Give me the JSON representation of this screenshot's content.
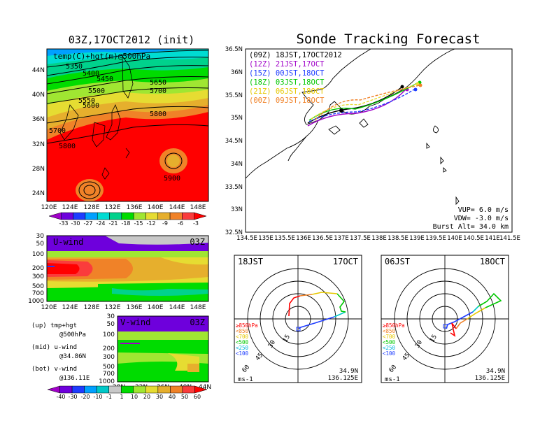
{
  "titles": {
    "left": "03Z,17OCT2012 (init)",
    "main": "Sonde Tracking Forecast"
  },
  "colors": {
    "temp_scale": [
      "#a000c8",
      "#6e00dc",
      "#1e3cff",
      "#00a0ff",
      "#00dcd2",
      "#00d28c",
      "#00dc00",
      "#a0e632",
      "#e6dc32",
      "#e6af2d",
      "#f08228",
      "#fa3c3c",
      "#ff0000"
    ],
    "wind_scale": [
      "#a000c8",
      "#6e00dc",
      "#1e3cff",
      "#00a0ff",
      "#00c8c8",
      "#c8c8c8",
      "#00dc00",
      "#a0e632",
      "#e6dc32",
      "#e6af2d",
      "#f08228",
      "#fa3c3c",
      "#ff0000"
    ],
    "track_09z": "#000000",
    "track_12z": "#a000c8",
    "track_15z": "#1e3cff",
    "track_18z": "#00c800",
    "track_21z": "#e6dc32",
    "track_00z": "#f08228"
  },
  "map500": {
    "label": "temp(C)+hgt(m)@500hPa",
    "height_labels": [
      "5350",
      "5400",
      "5450",
      "5500",
      "5550",
      "5600",
      "5650",
      "5700",
      "5700",
      "5800",
      "5800",
      "5900"
    ],
    "lat_ticks": [
      "44N",
      "40N",
      "36N",
      "32N",
      "28N",
      "24N"
    ],
    "lon_ticks": [
      "120E",
      "124E",
      "128E",
      "132E",
      "136E",
      "140E",
      "144E",
      "148E"
    ],
    "colorbar": [
      "-33",
      "-30",
      "-27",
      "-24",
      "-21",
      "-18",
      "-15",
      "-12",
      "-9",
      "-6",
      "-3"
    ]
  },
  "uwind": {
    "label": "U-wind",
    "time": "03Z",
    "p_ticks": [
      "30",
      "50",
      "100",
      "200",
      "300",
      "500",
      "700",
      "1000"
    ],
    "lon_ticks": [
      "120E",
      "124E",
      "128E",
      "132E",
      "136E",
      "140E",
      "144E",
      "148E"
    ]
  },
  "vwind": {
    "label": "V-wind",
    "time": "03Z",
    "p_ticks": [
      "30",
      "50",
      "100",
      "200",
      "300",
      "500",
      "700",
      "1000"
    ],
    "lat_ticks": [
      "28N",
      "32N",
      "36N",
      "40N",
      "44N"
    ],
    "colorbar": [
      "-40",
      "-30",
      "-20",
      "-10",
      "-1",
      "1",
      "10",
      "20",
      "30",
      "40",
      "50",
      "60"
    ]
  },
  "legend_text": {
    "up1": "(up) tmp+hgt",
    "up2": "@500hPa",
    "mid1": "(mid) u-wind",
    "mid2": "@34.86N",
    "bot1": "(bot) v-wind",
    "bot2": "@136.11E"
  },
  "tracking": {
    "launch_times": [
      "(09Z) 18JST,17OCT2012",
      "(12Z) 21JST,17OCT",
      "(15Z) 00JST,18OCT",
      "(18Z) 03JST,18OCT",
      "(21Z) 06JST,18OCT",
      "(00Z) 09JST,18OCT"
    ],
    "lat_ticks": [
      "36.5N",
      "36N",
      "35.5N",
      "35N",
      "34.5N",
      "34N",
      "33.5N",
      "33N",
      "32.5N"
    ],
    "lon_ticks": [
      "134.5E",
      "135E",
      "135.5E",
      "136E",
      "136.5E",
      "137E",
      "137.5E",
      "138E",
      "138.5E",
      "139E",
      "139.5E",
      "140E",
      "140.5E",
      "141E",
      "141.5E"
    ],
    "vup": "VUP= 6.0 m/s",
    "vdw": "VDW= -3.0 m/s",
    "burst": "Burst Alt= 34.0 km"
  },
  "hodo_left": {
    "time": "18JST",
    "date": "17OCT",
    "rings": [
      "15",
      "30",
      "45",
      "60"
    ],
    "levels": [
      "≥850hPa",
      "<850",
      "<700",
      "<500",
      "<250",
      "<100"
    ],
    "unit": "ms-1",
    "lat": "34.9N",
    "lon": "136.125E"
  },
  "hodo_right": {
    "time": "06JST",
    "date": "18OCT",
    "rings": [
      "15",
      "30",
      "45",
      "60"
    ],
    "levels": [
      "≥850hPa",
      "<850",
      "<700",
      "<500",
      "<250",
      "<100"
    ],
    "unit": "ms-1",
    "lat": "34.9N",
    "lon": "136.125E"
  }
}
